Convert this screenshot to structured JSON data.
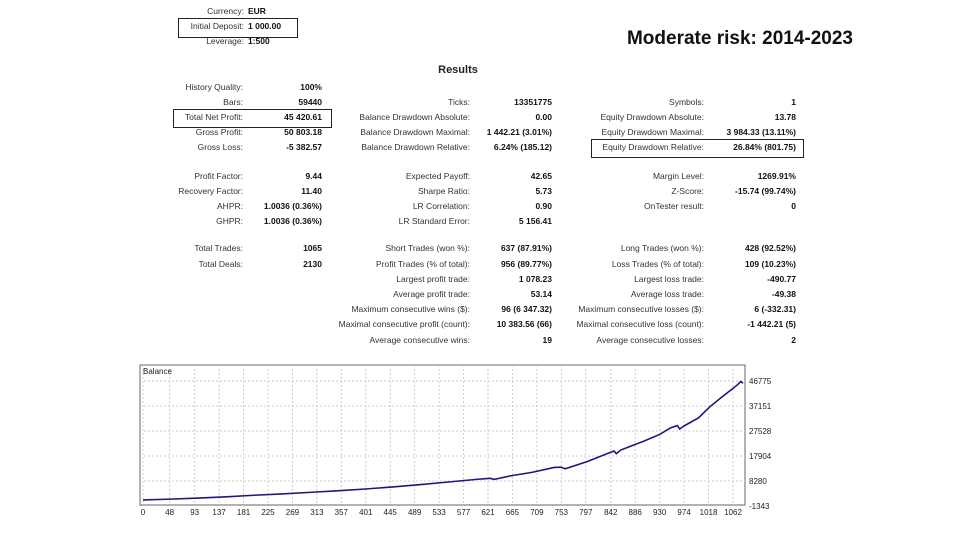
{
  "title": "Moderate risk: 2014-2023",
  "settings": [
    {
      "label": "Currency:",
      "value": "EUR"
    },
    {
      "label": "Initial Deposit:",
      "value": "1 000.00"
    },
    {
      "label": "Leverage:",
      "value": "1:500"
    }
  ],
  "results": {
    "heading": "Results",
    "rows": [
      [
        [
          "History Quality:",
          "100%"
        ],
        null,
        null
      ],
      [
        [
          "Bars:",
          "59440"
        ],
        [
          "Ticks:",
          "13351775"
        ],
        [
          "Symbols:",
          "1"
        ]
      ],
      [
        [
          "Total Net Profit:",
          "45 420.61"
        ],
        [
          "Balance Drawdown Absolute:",
          "0.00"
        ],
        [
          "Equity Drawdown Absolute:",
          "13.78"
        ]
      ],
      [
        [
          "Gross Profit:",
          "50 803.18"
        ],
        [
          "Balance Drawdown Maximal:",
          "1 442.21 (3.01%)"
        ],
        [
          "Equity Drawdown Maximal:",
          "3 984.33 (13.11%)"
        ]
      ],
      [
        [
          "Gross Loss:",
          "-5 382.57"
        ],
        [
          "Balance Drawdown Relative:",
          "6.24% (185.12)"
        ],
        [
          "Equity Drawdown Relative:",
          "26.84% (801.75)"
        ]
      ],
      [
        [
          "Profit Factor:",
          "9.44"
        ],
        [
          "Expected Payoff:",
          "42.65"
        ],
        [
          "Margin Level:",
          "1269.91%"
        ]
      ],
      [
        [
          "Recovery Factor:",
          "11.40"
        ],
        [
          "Sharpe Ratio:",
          "5.73"
        ],
        [
          "Z-Score:",
          "-15.74 (99.74%)"
        ]
      ],
      [
        [
          "AHPR:",
          "1.0036 (0.36%)"
        ],
        [
          "LR Correlation:",
          "0.90"
        ],
        [
          "OnTester result:",
          "0"
        ]
      ],
      [
        [
          "GHPR:",
          "1.0036 (0.36%)"
        ],
        [
          "LR Standard Error:",
          "5 156.41"
        ],
        null
      ],
      [
        [
          "Total Trades:",
          "1065"
        ],
        [
          "Short Trades (won %):",
          "637 (87.91%)"
        ],
        [
          "Long Trades (won %):",
          "428 (92.52%)"
        ]
      ],
      [
        [
          "Total Deals:",
          "2130"
        ],
        [
          "Profit Trades (% of total):",
          "956 (89.77%)"
        ],
        [
          "Loss Trades (% of total):",
          "109 (10.23%)"
        ]
      ],
      [
        null,
        [
          "Largest profit trade:",
          "1 078.23"
        ],
        [
          "Largest loss trade:",
          "-490.77"
        ]
      ],
      [
        null,
        [
          "Average profit trade:",
          "53.14"
        ],
        [
          "Average loss trade:",
          "-49.38"
        ]
      ],
      [
        null,
        [
          "Maximum consecutive wins ($):",
          "96 (6 347.32)"
        ],
        [
          "Maximum consecutive losses ($):",
          "6 (-332.31)"
        ]
      ],
      [
        null,
        [
          "Maximal consecutive profit (count):",
          "10 383.56 (66)"
        ],
        [
          "Maximal consecutive loss (count):",
          "-1 442.21 (5)"
        ]
      ],
      [
        null,
        [
          "Average consecutive wins:",
          "19"
        ],
        [
          "Average consecutive losses:",
          "2"
        ]
      ]
    ],
    "highlighted": [
      "Initial Deposit:",
      "Total Net Profit:",
      "Equity Drawdown Relative:"
    ]
  },
  "chart_data": {
    "type": "line",
    "title": "Balance",
    "x_ticks": [
      "0",
      "48",
      "93",
      "137",
      "181",
      "225",
      "269",
      "313",
      "357",
      "401",
      "445",
      "489",
      "533",
      "577",
      "621",
      "665",
      "709",
      "753",
      "797",
      "842",
      "886",
      "930",
      "974",
      "1018",
      "1062"
    ],
    "y_ticks": [
      "46775",
      "37151",
      "27528",
      "17904",
      "8280",
      "-1343"
    ],
    "xlim": [
      0,
      1085
    ],
    "ylim": [
      -1343,
      50000
    ],
    "grid": true,
    "line_color": "#1a1a7a",
    "series": [
      {
        "x": [
          0,
          50,
          100,
          150,
          200,
          250,
          300,
          350,
          400,
          450,
          500,
          550,
          600,
          625,
          632,
          660,
          700,
          740,
          752,
          760,
          800,
          840,
          848,
          852,
          860,
          900,
          930,
          950,
          962,
          966,
          975,
          1000,
          1020,
          1040,
          1060,
          1070,
          1076,
          1080
        ],
        "y": [
          1000,
          1300,
          1700,
          2200,
          2800,
          3300,
          3900,
          4500,
          5200,
          6000,
          6900,
          7900,
          8900,
          9300,
          8900,
          10200,
          11600,
          13500,
          13600,
          13000,
          15800,
          19200,
          19800,
          18800,
          20200,
          23500,
          26200,
          28800,
          29600,
          28300,
          29600,
          32600,
          36800,
          40300,
          43600,
          45300,
          46600,
          45900
        ]
      }
    ]
  }
}
